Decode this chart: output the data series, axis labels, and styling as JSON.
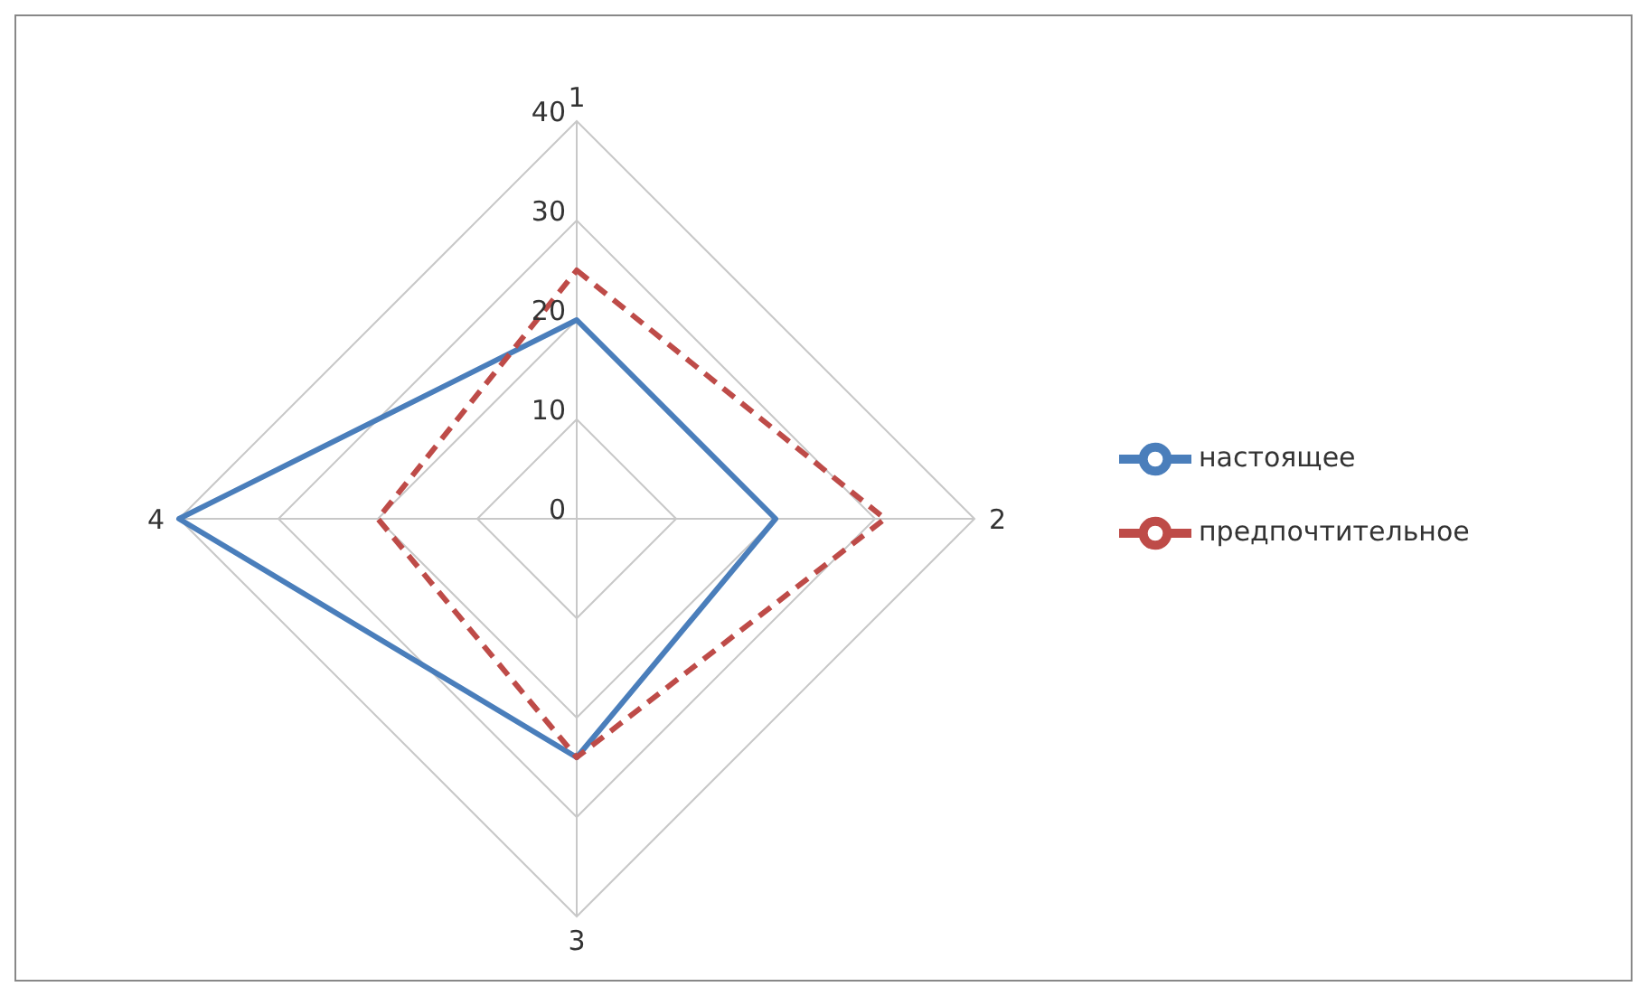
{
  "chart_data": {
    "type": "radar",
    "categories": [
      "1",
      "2",
      "3",
      "4"
    ],
    "ylim": [
      0,
      40
    ],
    "yticks": [
      0,
      10,
      20,
      30,
      40
    ],
    "grid": true,
    "legend": "right",
    "marker": "none",
    "series": [
      {
        "name": "настоящее",
        "color": "#4a7ebb",
        "values": [
          20,
          20,
          24,
          40
        ],
        "line_style": "solid"
      },
      {
        "name": "предпочтительное",
        "color": "#be4b48",
        "values": [
          25,
          31,
          24,
          20
        ],
        "line_style": "dashed"
      }
    ]
  }
}
